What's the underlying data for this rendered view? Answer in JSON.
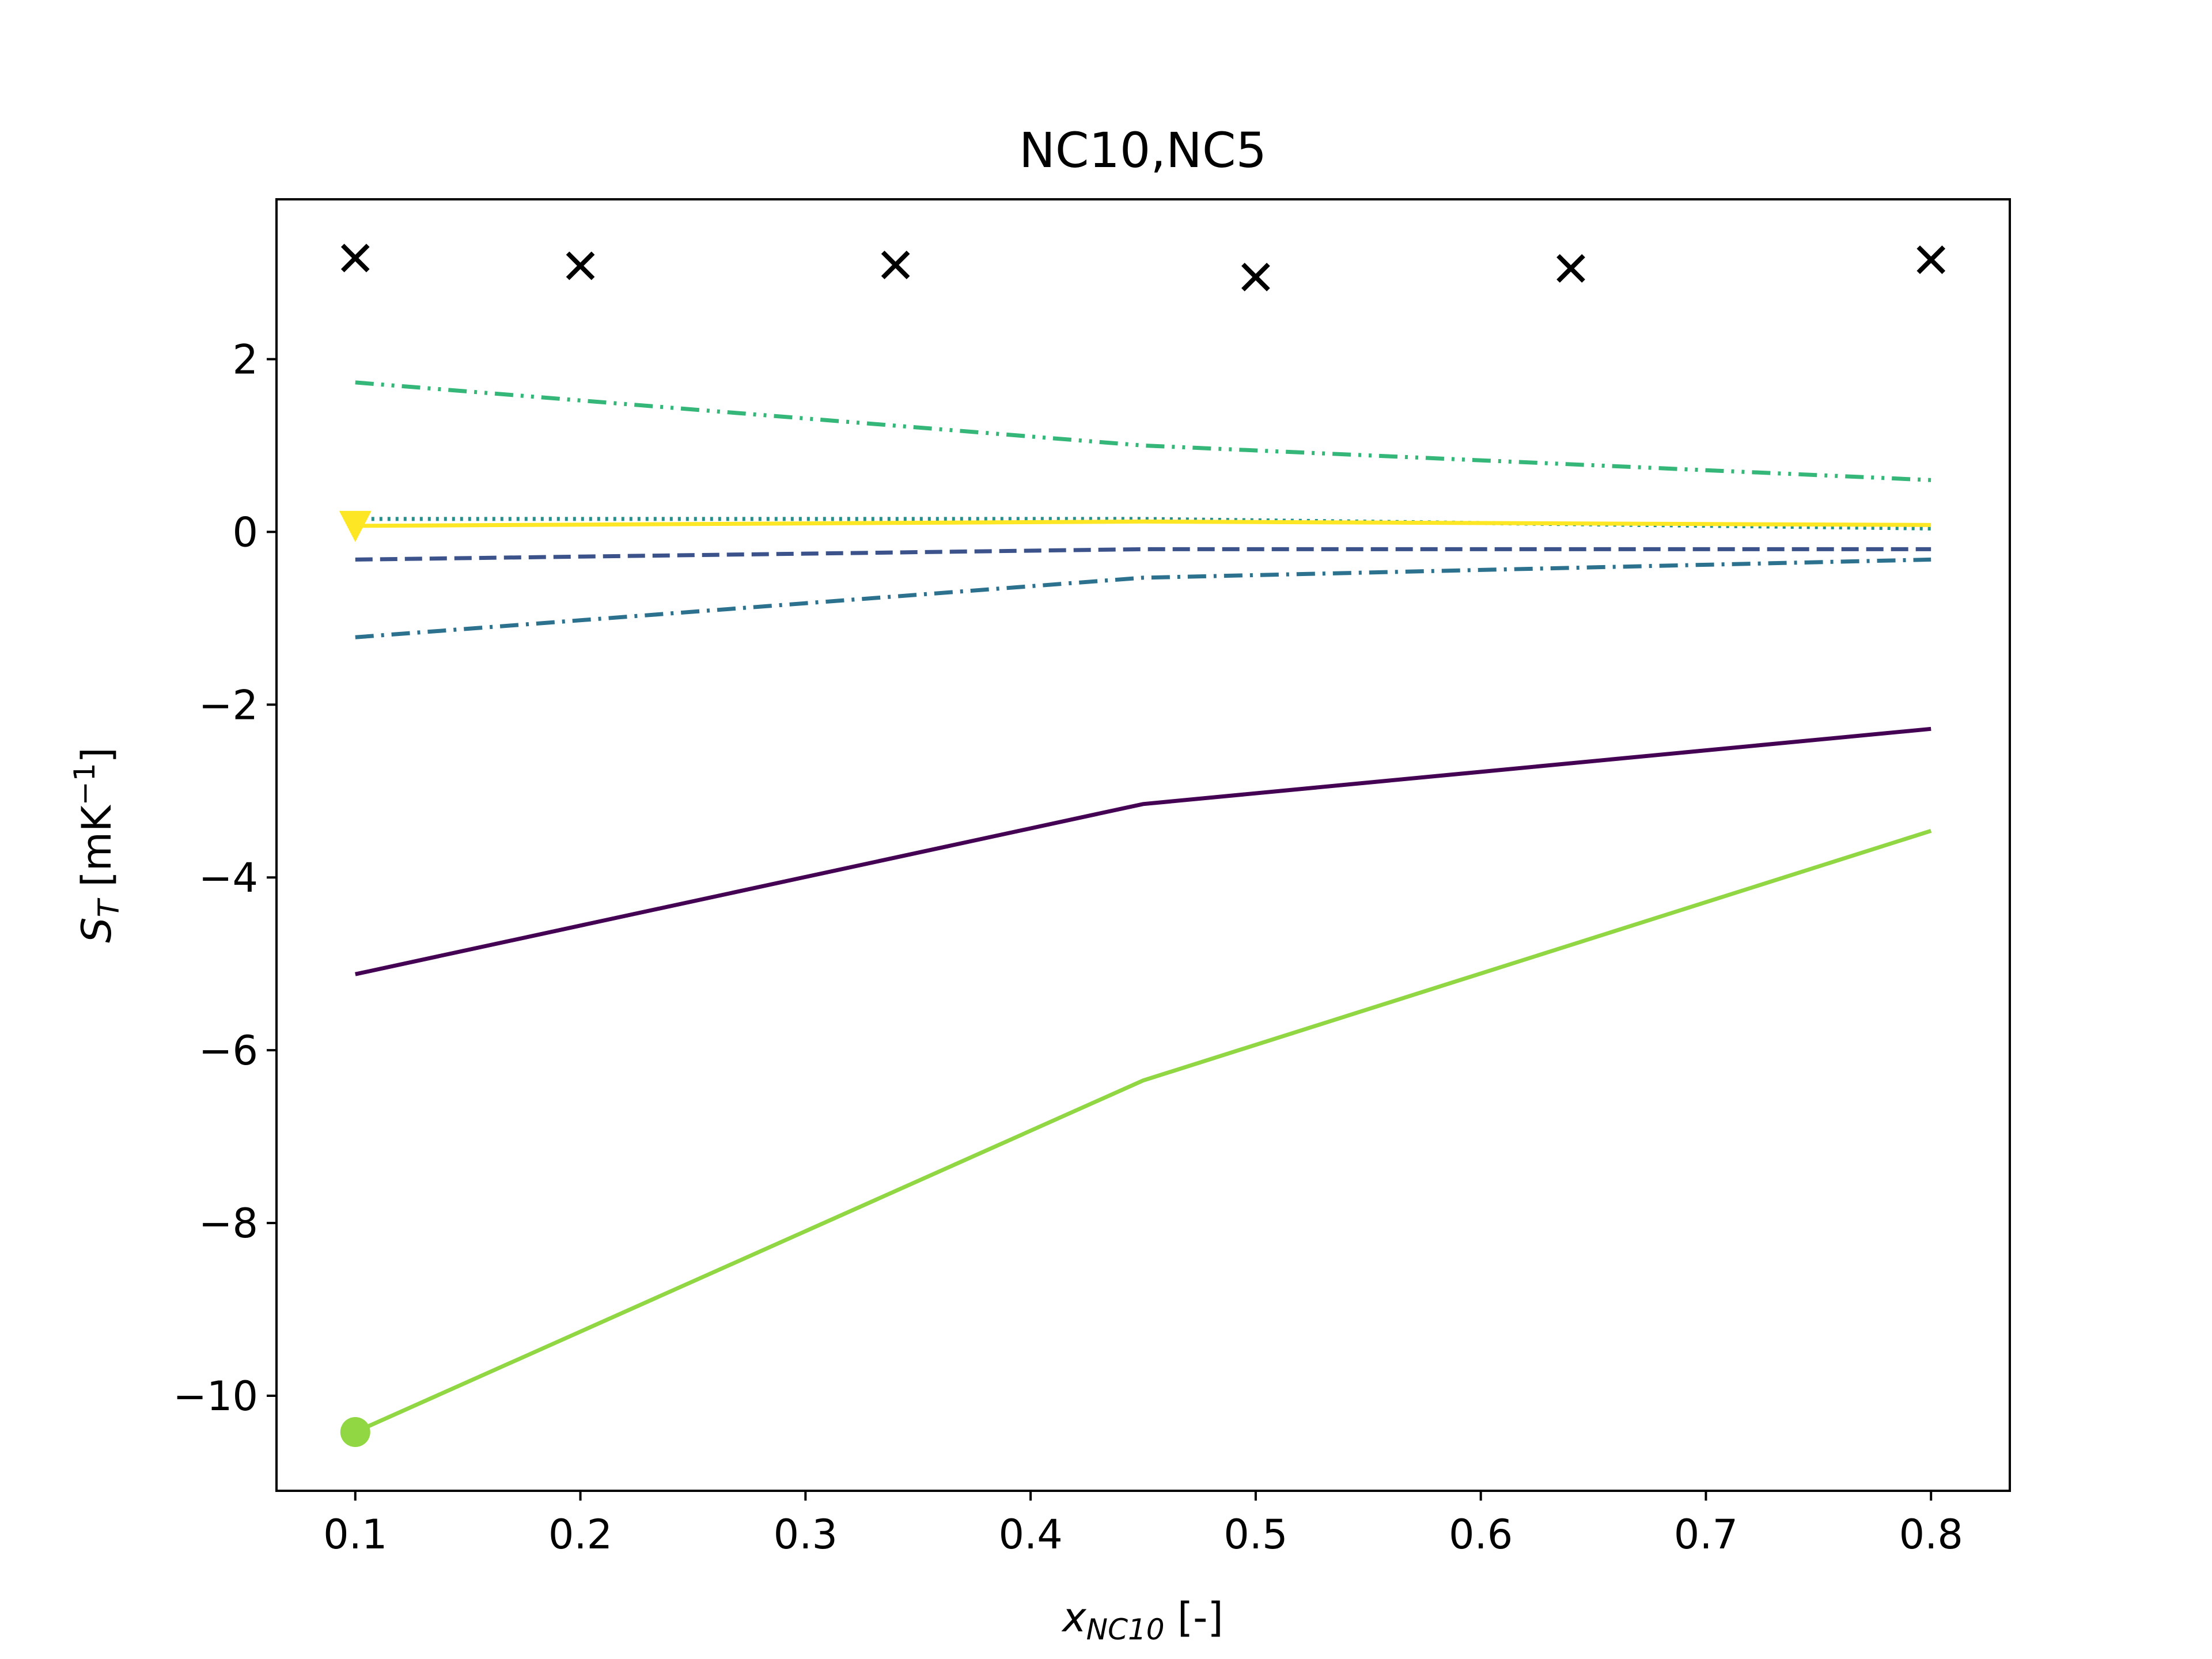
{
  "chart_data": {
    "type": "line",
    "title": "NC10,NC5",
    "xlabel": {
      "main": "x",
      "sub": "NC10",
      "suffix": " [-]"
    },
    "ylabel": {
      "main": "S",
      "sub": "T",
      "suffix": " [mK",
      "sup": "−1",
      "end": "]"
    },
    "xlim": [
      0.065,
      0.835
    ],
    "ylim": [
      -11.1,
      3.85
    ],
    "xticks": [
      0.1,
      0.2,
      0.3,
      0.4,
      0.5,
      0.6,
      0.7,
      0.8
    ],
    "xtick_labels": [
      "0.1",
      "0.2",
      "0.3",
      "0.4",
      "0.5",
      "0.6",
      "0.7",
      "0.8"
    ],
    "yticks": [
      -10,
      -8,
      -6,
      -4,
      -2,
      0,
      2
    ],
    "ytick_labels": [
      "−10",
      "−8",
      "−6",
      "−4",
      "−2",
      "0",
      "2"
    ],
    "grid": false,
    "series": [
      {
        "color": "#440154",
        "dash": "solid",
        "x": [
          0.1,
          0.45,
          0.8
        ],
        "y": [
          -5.12,
          -3.15,
          -2.28
        ]
      },
      {
        "color": "#3b528b",
        "dash": "dashed",
        "x": [
          0.1,
          0.45,
          0.8
        ],
        "y": [
          -0.32,
          -0.2,
          -0.2
        ]
      },
      {
        "color": "#2c728e",
        "dash": "dashdot",
        "x": [
          0.1,
          0.45,
          0.8
        ],
        "y": [
          -1.22,
          -0.53,
          -0.32
        ]
      },
      {
        "color": "#21918c",
        "dash": "dotted",
        "x": [
          0.1,
          0.45,
          0.8
        ],
        "y": [
          0.15,
          0.15,
          0.04
        ]
      },
      {
        "color": "#35b779",
        "dash": "dashdotdot",
        "x": [
          0.1,
          0.45,
          0.8
        ],
        "y": [
          1.73,
          1.0,
          0.6
        ]
      },
      {
        "color": "#90d743",
        "dash": "solid",
        "x": [
          0.1,
          0.45,
          0.8
        ],
        "y": [
          -10.42,
          -6.35,
          -3.46
        ],
        "marker": "circle"
      },
      {
        "color": "#fde725",
        "dash": "solid",
        "x": [
          0.1,
          0.45,
          0.8
        ],
        "y": [
          0.07,
          0.12,
          0.08
        ],
        "marker": "triangle-down"
      }
    ],
    "scatter": {
      "color": "#000000",
      "marker": "x",
      "x": [
        0.1,
        0.2,
        0.34,
        0.5,
        0.64,
        0.8
      ],
      "y": [
        3.17,
        3.08,
        3.09,
        2.95,
        3.05,
        3.15
      ]
    }
  }
}
